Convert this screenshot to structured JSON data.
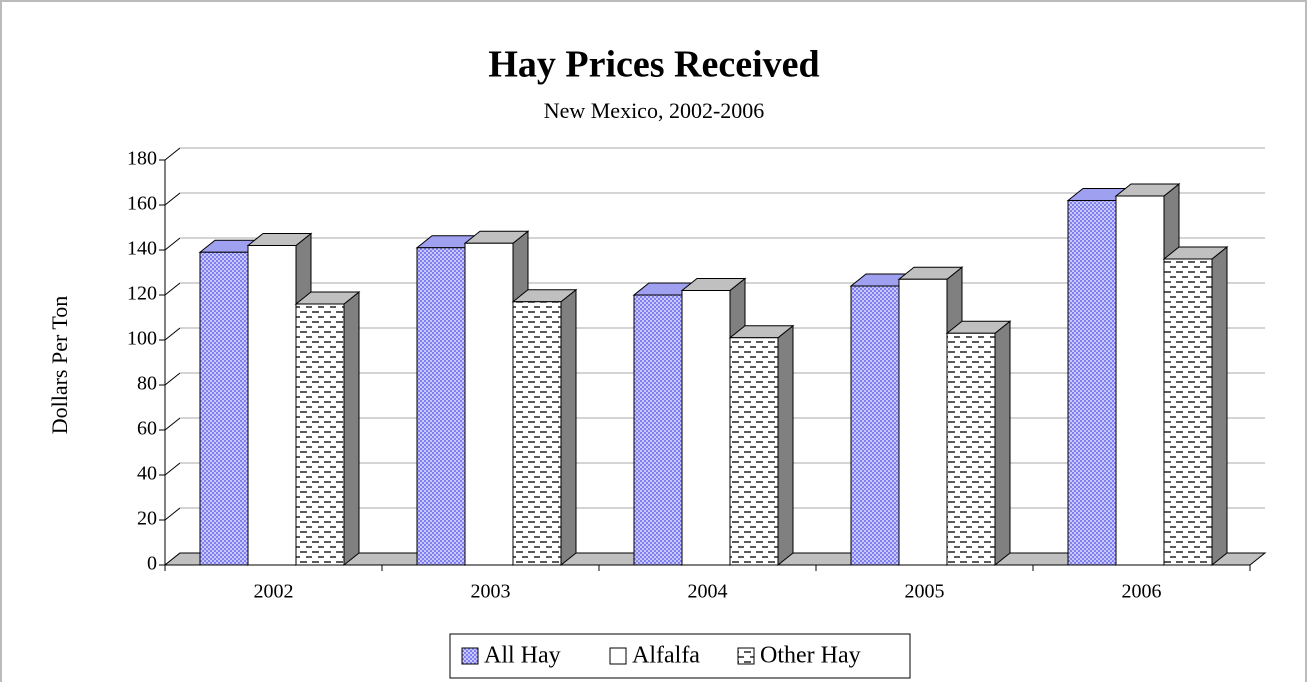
{
  "chart_data": {
    "type": "bar3d",
    "title": "Hay Prices Received",
    "subtitle": "New Mexico, 2002-2006",
    "y_label": "Dollars Per Ton",
    "categories": [
      "2002",
      "2003",
      "2004",
      "2005",
      "2006"
    ],
    "series": [
      {
        "name": "All Hay",
        "color": "#9999ff",
        "values": [
          139,
          141,
          120,
          124,
          162
        ]
      },
      {
        "name": "Alfalfa",
        "color": "#ffffff",
        "values": [
          142,
          143,
          122,
          127,
          164
        ]
      },
      {
        "name": "Other Hay",
        "color": "#ffffff",
        "values": [
          116,
          117,
          101,
          103,
          136
        ]
      }
    ],
    "ylim": [
      0,
      180
    ],
    "yticks": [
      0,
      20,
      40,
      60,
      80,
      100,
      120,
      140,
      160,
      180
    ],
    "grid": true,
    "legend": "bottom"
  }
}
